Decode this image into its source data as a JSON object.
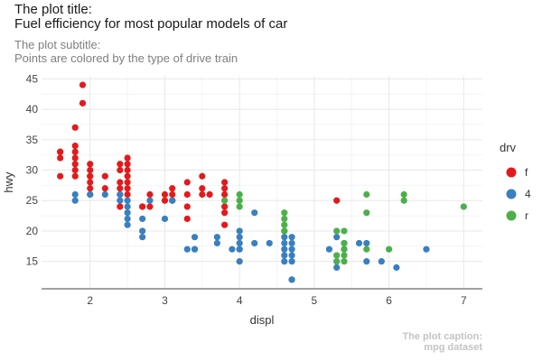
{
  "chart_data": {
    "type": "scatter",
    "title_lines": [
      "The plot title:",
      "Fuel efficiency for most popular models of car"
    ],
    "subtitle_lines": [
      "The plot subtitle:",
      "Points are colored by the type of drive train"
    ],
    "caption_lines": [
      "The plot caption:",
      "mpg dataset"
    ],
    "xlabel": "displ",
    "ylabel": "hwy",
    "xlim": [
      1.35,
      7.25
    ],
    "ylim": [
      10.5,
      45.5
    ],
    "x_ticks": [
      2,
      3,
      4,
      5,
      6,
      7
    ],
    "y_ticks": [
      15,
      20,
      25,
      30,
      35,
      40,
      45
    ],
    "grid": true,
    "legend": {
      "title": "drv",
      "position": "right",
      "entries": [
        {
          "label": "f",
          "color": "#e31a1c"
        },
        {
          "label": "4",
          "color": "#3a7fbf"
        },
        {
          "label": "r",
          "color": "#4daf4a"
        }
      ]
    },
    "series": [
      {
        "name": "f",
        "color": "#e31a1c",
        "x": [
          1.6,
          1.6,
          1.6,
          1.6,
          1.8,
          1.8,
          1.8,
          1.8,
          1.8,
          1.8,
          1.8,
          1.9,
          1.9,
          2.0,
          2.0,
          2.0,
          2.0,
          2.0,
          2.0,
          2.0,
          2.2,
          2.2,
          2.4,
          2.4,
          2.4,
          2.4,
          2.4,
          2.4,
          2.5,
          2.5,
          2.5,
          2.5,
          2.5,
          2.5,
          2.5,
          2.7,
          2.7,
          2.8,
          2.8,
          3.0,
          3.0,
          3.1,
          3.1,
          3.1,
          3.3,
          3.3,
          3.3,
          3.3,
          3.5,
          3.5,
          3.5,
          3.6,
          3.8,
          3.8,
          3.8,
          3.8,
          3.8,
          3.8,
          5.3
        ],
        "y": [
          29,
          32,
          33,
          33,
          29,
          30,
          31,
          32,
          33,
          34,
          37,
          41,
          44,
          26,
          27,
          28,
          29,
          30,
          31,
          29,
          27,
          29,
          24,
          26,
          27,
          28,
          30,
          31,
          26,
          27,
          28,
          29,
          30,
          31,
          32,
          24,
          24,
          24,
          26,
          25,
          26,
          25,
          26,
          27,
          22,
          24,
          26,
          28,
          26,
          27,
          29,
          26,
          21,
          23,
          24,
          26,
          27,
          28,
          25
        ]
      },
      {
        "name": "4",
        "color": "#3a7fbf",
        "x": [
          1.8,
          1.8,
          2.0,
          2.2,
          2.4,
          2.4,
          2.5,
          2.5,
          2.5,
          2.5,
          2.5,
          2.7,
          2.7,
          2.7,
          2.8,
          3.0,
          3.1,
          3.3,
          3.4,
          3.4,
          3.4,
          3.7,
          3.7,
          3.9,
          4.0,
          4.0,
          4.0,
          4.0,
          4.0,
          4.0,
          4.2,
          4.2,
          4.4,
          4.6,
          4.6,
          4.6,
          4.6,
          4.6,
          4.7,
          4.7,
          4.7,
          4.7,
          4.7,
          4.7,
          4.7,
          5.2,
          5.3,
          5.3,
          5.3,
          5.4,
          5.4,
          5.6,
          5.7,
          5.7,
          5.9,
          6.1,
          6.5
        ],
        "y": [
          25,
          26,
          26,
          26,
          25,
          26,
          21,
          22,
          23,
          24,
          25,
          19,
          20,
          22,
          25,
          22,
          25,
          17,
          17,
          19,
          17,
          18,
          19,
          17,
          15,
          17,
          18,
          19,
          20,
          17,
          18,
          23,
          18,
          15,
          16,
          17,
          18,
          19,
          12,
          15,
          16,
          17,
          18,
          19,
          12,
          17,
          14,
          15,
          19,
          17,
          18,
          18,
          15,
          18,
          15,
          14,
          17
        ]
      },
      {
        "name": "r",
        "color": "#4daf4a",
        "x": [
          3.8,
          4.0,
          4.0,
          4.0,
          4.6,
          4.6,
          4.6,
          4.6,
          4.6,
          5.3,
          5.3,
          5.3,
          5.4,
          5.4,
          5.4,
          5.4,
          5.4,
          5.7,
          5.7,
          5.7,
          6.0,
          6.2,
          6.2,
          7.0
        ],
        "y": [
          25,
          24,
          25,
          26,
          20,
          21,
          22,
          23,
          20,
          15,
          16,
          20,
          15,
          16,
          17,
          18,
          20,
          17,
          23,
          26,
          17,
          25,
          26,
          24
        ]
      }
    ]
  }
}
